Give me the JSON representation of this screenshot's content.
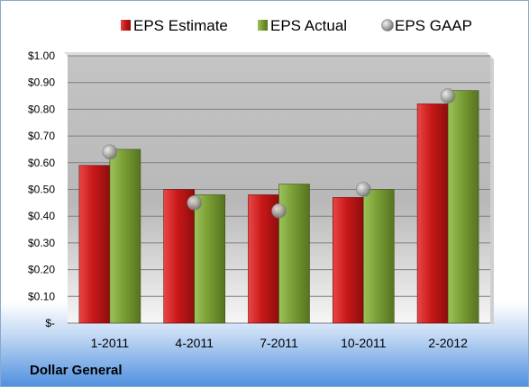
{
  "chart_data": {
    "type": "bar",
    "categories": [
      "1-2011",
      "4-2011",
      "7-2011",
      "10-2011",
      "2-2012"
    ],
    "series": [
      {
        "name": "EPS Estimate",
        "kind": "bar",
        "color": "#cc1f1f",
        "values": [
          0.59,
          0.5,
          0.48,
          0.47,
          0.82
        ]
      },
      {
        "name": "EPS Actual",
        "kind": "bar",
        "color": "#7da03a",
        "values": [
          0.65,
          0.48,
          0.52,
          0.5,
          0.87
        ]
      },
      {
        "name": "EPS GAAP",
        "kind": "marker",
        "color": "#a8a8a8",
        "values": [
          0.64,
          0.45,
          0.42,
          0.5,
          0.85
        ]
      }
    ],
    "y_ticks": [
      "$-",
      "$0.10",
      "$0.20",
      "$0.30",
      "$0.40",
      "$0.50",
      "$0.60",
      "$0.70",
      "$0.80",
      "$0.90",
      "$1.00"
    ],
    "ylim": [
      0,
      1.0
    ],
    "grid": true,
    "legend_position": "top",
    "company": "Dollar General"
  }
}
